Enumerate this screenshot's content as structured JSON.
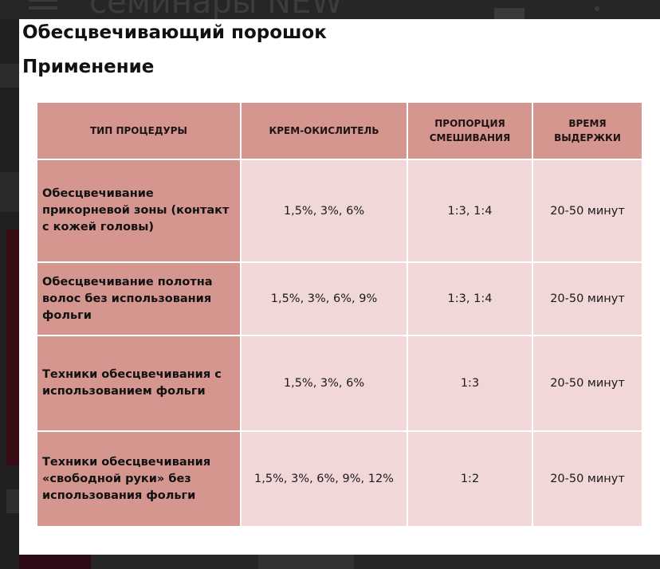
{
  "app_bar": {
    "title": "семинары NEW",
    "menu_icon": "hamburger-menu-icon",
    "calendar_icon": "calendar-icon",
    "more_icon": "more-vertical-icon"
  },
  "document": {
    "product_title": "Обесцвечивающий порошок",
    "section_title": "Применение"
  },
  "table": {
    "headers": {
      "procedure_type": "ТИП ПРОЦЕДУРЫ",
      "oxidizer": "КРЕМ-ОКИСЛИТЕЛЬ",
      "mix_ratio": "ПРОПОРЦИЯ СМЕШИВАНИЯ",
      "exposure_time": "ВРЕМЯ ВЫДЕРЖКИ"
    },
    "rows": [
      {
        "procedure": "Обесцвечивание прикорневой зоны (контакт с кожей головы)",
        "oxidizer": "1,5%, 3%, 6%",
        "ratio": "1:3, 1:4",
        "time": "20-50 минут"
      },
      {
        "procedure": "Обесцвечивание полотна волос без использования фольги",
        "oxidizer": "1,5%, 3%, 6%, 9%",
        "ratio": "1:3, 1:4",
        "time": "20-50 минут"
      },
      {
        "procedure": "Техники обесцвечивания с использованием фольги",
        "oxidizer": "1,5%, 3%, 6%",
        "ratio": "1:3",
        "time": "20-50 минут"
      },
      {
        "procedure": "Техники обесцвечивания «свободной руки» без использования фольги",
        "oxidizer": "1,5%, 3%, 6%, 9%, 12%",
        "ratio": "1:2",
        "time": "20-50 минут"
      }
    ]
  },
  "colors": {
    "header_fill": "#d69690",
    "cell_fill": "#f2d7d9",
    "sheet_background": "#ffffff",
    "backdrop": "#1b1b1b"
  }
}
